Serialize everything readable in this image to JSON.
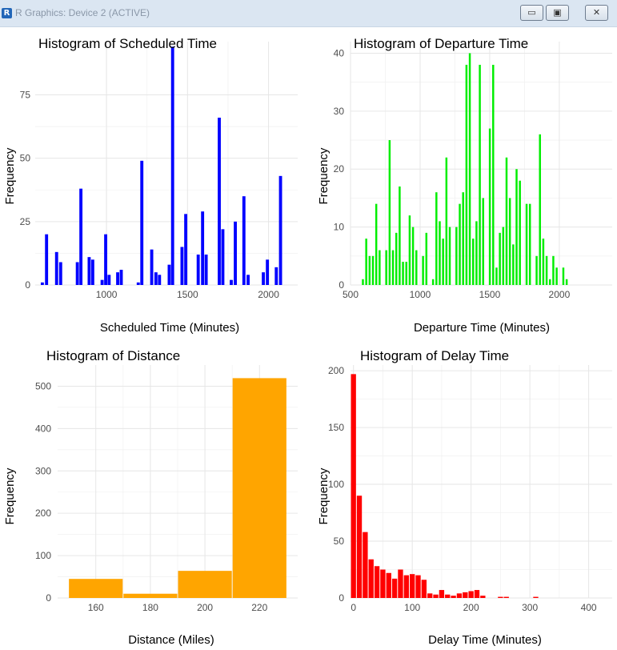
{
  "window": {
    "title": "R Graphics: Device 2 (ACTIVE)",
    "icon": "R",
    "icon_name": "r-logo-icon",
    "buttons": {
      "minimize": "▭",
      "maximize": "▣",
      "close": "✕"
    }
  },
  "chart_data": [
    {
      "type": "bar",
      "title": "Histogram of Scheduled Time",
      "xlabel": "Scheduled Time (Minutes)",
      "ylabel": "Frequency",
      "xlim": [
        560,
        2180
      ],
      "ylim": [
        0,
        96
      ],
      "xticks": [
        1000,
        1500,
        2000
      ],
      "yticks": [
        0,
        25,
        50,
        75
      ],
      "bin_width": 24,
      "color": "#0000ff",
      "grid": true,
      "bars": [
        [
          604,
          1
        ],
        [
          630,
          20
        ],
        [
          692,
          13
        ],
        [
          717,
          9
        ],
        [
          820,
          9
        ],
        [
          842,
          38
        ],
        [
          893,
          11
        ],
        [
          915,
          10
        ],
        [
          973,
          2
        ],
        [
          995,
          20
        ],
        [
          1016,
          4
        ],
        [
          1069,
          5
        ],
        [
          1091,
          6
        ],
        [
          1196,
          1
        ],
        [
          1218,
          49
        ],
        [
          1279,
          14
        ],
        [
          1305,
          5
        ],
        [
          1327,
          4
        ],
        [
          1387,
          8
        ],
        [
          1408,
          94
        ],
        [
          1466,
          15
        ],
        [
          1489,
          28
        ],
        [
          1566,
          12
        ],
        [
          1593,
          29
        ],
        [
          1615,
          12
        ],
        [
          1696,
          66
        ],
        [
          1718,
          22
        ],
        [
          1770,
          2
        ],
        [
          1795,
          25
        ],
        [
          1848,
          35
        ],
        [
          1874,
          4
        ],
        [
          1968,
          5
        ],
        [
          1993,
          10
        ],
        [
          2048,
          7
        ],
        [
          2074,
          43
        ]
      ]
    },
    {
      "type": "bar",
      "title": "Histogram of Departure Time",
      "xlabel": "Departure Time (Minutes)",
      "ylabel": "Frequency",
      "xlim": [
        500,
        2380
      ],
      "ylim": [
        0,
        42
      ],
      "xticks": [
        500,
        1000,
        1500,
        2000
      ],
      "yticks": [
        0,
        10,
        20,
        30,
        40
      ],
      "bin_width": 20,
      "color": "#00ee00",
      "grid": true,
      "bars": [
        [
          589,
          1
        ],
        [
          613,
          8
        ],
        [
          637,
          5
        ],
        [
          661,
          5
        ],
        [
          685,
          14
        ],
        [
          709,
          6
        ],
        [
          757,
          6
        ],
        [
          781,
          25
        ],
        [
          805,
          6
        ],
        [
          829,
          9
        ],
        [
          853,
          17
        ],
        [
          877,
          4
        ],
        [
          901,
          4
        ],
        [
          925,
          12
        ],
        [
          949,
          10
        ],
        [
          973,
          6
        ],
        [
          1021,
          5
        ],
        [
          1045,
          9
        ],
        [
          1093,
          1
        ],
        [
          1117,
          16
        ],
        [
          1141,
          11
        ],
        [
          1165,
          8
        ],
        [
          1189,
          22
        ],
        [
          1213,
          10
        ],
        [
          1261,
          10
        ],
        [
          1285,
          14
        ],
        [
          1309,
          16
        ],
        [
          1333,
          38
        ],
        [
          1357,
          40
        ],
        [
          1381,
          8
        ],
        [
          1405,
          11
        ],
        [
          1429,
          38
        ],
        [
          1453,
          15
        ],
        [
          1501,
          27
        ],
        [
          1525,
          38
        ],
        [
          1549,
          3
        ],
        [
          1573,
          9
        ],
        [
          1597,
          10
        ],
        [
          1621,
          22
        ],
        [
          1645,
          15
        ],
        [
          1669,
          7
        ],
        [
          1693,
          20
        ],
        [
          1717,
          18
        ],
        [
          1765,
          14
        ],
        [
          1789,
          14
        ],
        [
          1837,
          5
        ],
        [
          1861,
          26
        ],
        [
          1885,
          8
        ],
        [
          1909,
          5
        ],
        [
          1933,
          1
        ],
        [
          1957,
          5
        ],
        [
          1981,
          3
        ],
        [
          2029,
          3
        ],
        [
          2053,
          1
        ]
      ]
    },
    {
      "type": "bar",
      "title": "Histogram of Distance",
      "xlabel": "Distance (Miles)",
      "ylabel": "Frequency",
      "xlim": [
        146,
        234
      ],
      "ylim": [
        0,
        550
      ],
      "xticks": [
        160,
        180,
        200,
        220
      ],
      "yticks": [
        0,
        100,
        200,
        300,
        400,
        500
      ],
      "bin_width": 20,
      "color": "#ffa500",
      "grid": true,
      "bars": [
        [
          160,
          45
        ],
        [
          180,
          10
        ],
        [
          200,
          64
        ],
        [
          220,
          519
        ]
      ]
    },
    {
      "type": "bar",
      "title": "Histogram of Delay Time",
      "xlabel": "Delay Time (Minutes)",
      "ylabel": "Frequency",
      "xlim": [
        -5,
        440
      ],
      "ylim": [
        0,
        205
      ],
      "xticks": [
        0,
        100,
        200,
        300,
        400
      ],
      "yticks": [
        0,
        50,
        100,
        150,
        200
      ],
      "bin_width": 10,
      "color": "#ff0000",
      "grid": true,
      "bars": [
        [
          0,
          197
        ],
        [
          10,
          90
        ],
        [
          20,
          58
        ],
        [
          30,
          34
        ],
        [
          40,
          28
        ],
        [
          50,
          25
        ],
        [
          60,
          22
        ],
        [
          70,
          17
        ],
        [
          80,
          25
        ],
        [
          90,
          20
        ],
        [
          100,
          21
        ],
        [
          110,
          20
        ],
        [
          120,
          16
        ],
        [
          130,
          4
        ],
        [
          140,
          3
        ],
        [
          150,
          7
        ],
        [
          160,
          3
        ],
        [
          170,
          2
        ],
        [
          180,
          4
        ],
        [
          190,
          5
        ],
        [
          200,
          6
        ],
        [
          210,
          7
        ],
        [
          220,
          2
        ],
        [
          250,
          1
        ],
        [
          260,
          1
        ],
        [
          310,
          1
        ]
      ]
    }
  ]
}
